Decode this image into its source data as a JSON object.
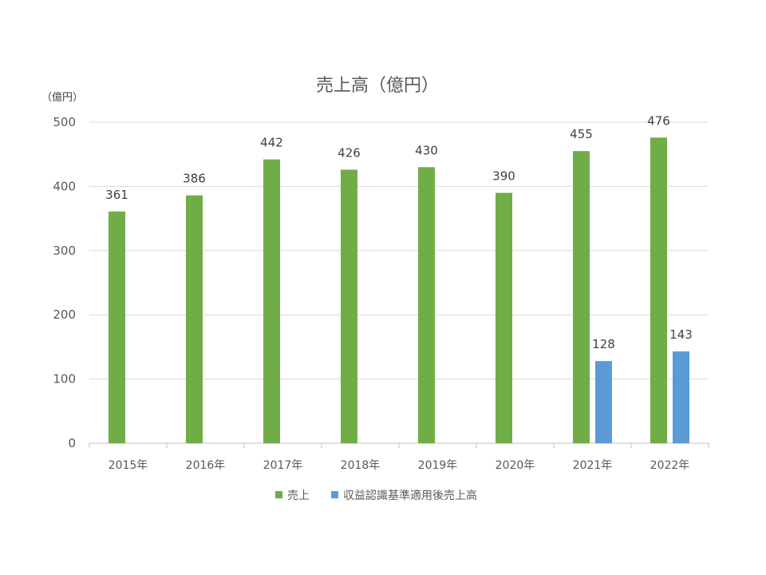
{
  "chart_data": {
    "type": "bar",
    "title": "売上高（億円）",
    "unit_label": "（億円）",
    "ylim": [
      0,
      500
    ],
    "yticks": [
      0,
      100,
      200,
      300,
      400,
      500
    ],
    "grid": true,
    "legend_position": "bottom",
    "categories": [
      "2015年",
      "2016年",
      "2017年",
      "2018年",
      "2019年",
      "2020年",
      "2021年",
      "2022年"
    ],
    "series": [
      {
        "name": "売上",
        "color": "#70AD47",
        "values": [
          361,
          386,
          442,
          426,
          430,
          390,
          455,
          476
        ]
      },
      {
        "name": "収益認識基準適用後売上高",
        "color": "#5B9BD5",
        "values": [
          null,
          null,
          null,
          null,
          null,
          null,
          128,
          143
        ]
      }
    ]
  }
}
